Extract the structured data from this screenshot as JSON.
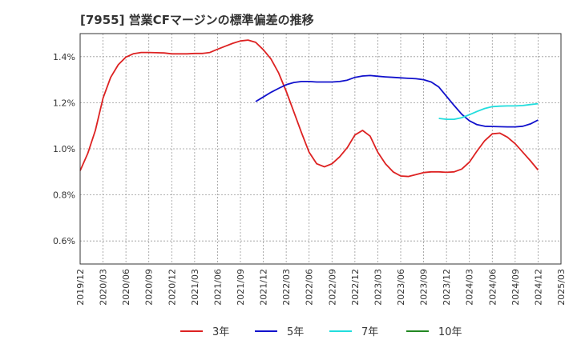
{
  "chart_data": {
    "type": "line",
    "title": "[7955]  営業CFマージンの標準偏差の推移",
    "xlabel": "",
    "ylabel": "",
    "x_ticks": [
      "2019/12",
      "2020/03",
      "2020/06",
      "2020/09",
      "2020/12",
      "2021/03",
      "2021/06",
      "2021/09",
      "2021/12",
      "2022/03",
      "2022/06",
      "2022/09",
      "2022/12",
      "2023/03",
      "2023/06",
      "2023/09",
      "2023/12",
      "2024/03",
      "2024/06",
      "2024/09",
      "2024/12",
      "2025/03"
    ],
    "y_ticks": [
      "0.6%",
      "0.8%",
      "1.0%",
      "1.2%",
      "1.4%"
    ],
    "y_tick_values": [
      0.6,
      0.8,
      1.0,
      1.2,
      1.4
    ],
    "xlim": [
      "2019/12",
      "2025/03"
    ],
    "ylim": [
      0.5,
      1.5
    ],
    "grid": true,
    "legend_position": "bottom",
    "series": [
      {
        "name": "3年",
        "color": "#dd2222",
        "points": [
          [
            "2019/12",
            0.905
          ],
          [
            "2020/01",
            0.98
          ],
          [
            "2020/02",
            1.08
          ],
          [
            "2020/03",
            1.22
          ],
          [
            "2020/04",
            1.31
          ],
          [
            "2020/05",
            1.365
          ],
          [
            "2020/06",
            1.398
          ],
          [
            "2020/07",
            1.413
          ],
          [
            "2020/08",
            1.418
          ],
          [
            "2020/09",
            1.418
          ],
          [
            "2020/10",
            1.417
          ],
          [
            "2020/11",
            1.416
          ],
          [
            "2020/12",
            1.412
          ],
          [
            "2021/01",
            1.412
          ],
          [
            "2021/02",
            1.412
          ],
          [
            "2021/03",
            1.414
          ],
          [
            "2021/04",
            1.414
          ],
          [
            "2021/05",
            1.418
          ],
          [
            "2021/06",
            1.432
          ],
          [
            "2021/07",
            1.445
          ],
          [
            "2021/08",
            1.458
          ],
          [
            "2021/09",
            1.468
          ],
          [
            "2021/10",
            1.472
          ],
          [
            "2021/11",
            1.462
          ],
          [
            "2021/12",
            1.43
          ],
          [
            "2022/01",
            1.39
          ],
          [
            "2022/02",
            1.33
          ],
          [
            "2022/03",
            1.25
          ],
          [
            "2022/04",
            1.16
          ],
          [
            "2022/05",
            1.07
          ],
          [
            "2022/06",
            0.985
          ],
          [
            "2022/07",
            0.935
          ],
          [
            "2022/08",
            0.922
          ],
          [
            "2022/09",
            0.935
          ],
          [
            "2022/10",
            0.965
          ],
          [
            "2022/11",
            1.005
          ],
          [
            "2022/12",
            1.06
          ],
          [
            "2023/01",
            1.08
          ],
          [
            "2023/02",
            1.055
          ],
          [
            "2023/03",
            0.985
          ],
          [
            "2023/04",
            0.935
          ],
          [
            "2023/05",
            0.9
          ],
          [
            "2023/06",
            0.882
          ],
          [
            "2023/07",
            0.88
          ],
          [
            "2023/08",
            0.888
          ],
          [
            "2023/09",
            0.897
          ],
          [
            "2023/10",
            0.9
          ],
          [
            "2023/11",
            0.9
          ],
          [
            "2023/12",
            0.898
          ],
          [
            "2024/01",
            0.9
          ],
          [
            "2024/02",
            0.912
          ],
          [
            "2024/03",
            0.942
          ],
          [
            "2024/04",
            0.99
          ],
          [
            "2024/05",
            1.035
          ],
          [
            "2024/06",
            1.065
          ],
          [
            "2024/07",
            1.068
          ],
          [
            "2024/08",
            1.05
          ],
          [
            "2024/09",
            1.022
          ],
          [
            "2024/10",
            0.985
          ],
          [
            "2024/11",
            0.948
          ],
          [
            "2024/12",
            0.908
          ]
        ]
      },
      {
        "name": "5年",
        "color": "#1111cc",
        "points": [
          [
            "2021/11",
            1.205
          ],
          [
            "2021/12",
            1.225
          ],
          [
            "2022/01",
            1.245
          ],
          [
            "2022/02",
            1.262
          ],
          [
            "2022/03",
            1.278
          ],
          [
            "2022/04",
            1.288
          ],
          [
            "2022/05",
            1.292
          ],
          [
            "2022/06",
            1.292
          ],
          [
            "2022/07",
            1.29
          ],
          [
            "2022/08",
            1.29
          ],
          [
            "2022/09",
            1.29
          ],
          [
            "2022/10",
            1.292
          ],
          [
            "2022/11",
            1.298
          ],
          [
            "2022/12",
            1.31
          ],
          [
            "2023/01",
            1.316
          ],
          [
            "2023/02",
            1.318
          ],
          [
            "2023/03",
            1.315
          ],
          [
            "2023/04",
            1.312
          ],
          [
            "2023/05",
            1.31
          ],
          [
            "2023/06",
            1.308
          ],
          [
            "2023/07",
            1.306
          ],
          [
            "2023/08",
            1.304
          ],
          [
            "2023/09",
            1.3
          ],
          [
            "2023/10",
            1.29
          ],
          [
            "2023/11",
            1.268
          ],
          [
            "2023/12",
            1.228
          ],
          [
            "2024/01",
            1.188
          ],
          [
            "2024/02",
            1.15
          ],
          [
            "2024/03",
            1.122
          ],
          [
            "2024/04",
            1.105
          ],
          [
            "2024/05",
            1.098
          ],
          [
            "2024/06",
            1.097
          ],
          [
            "2024/07",
            1.096
          ],
          [
            "2024/08",
            1.095
          ],
          [
            "2024/09",
            1.095
          ],
          [
            "2024/10",
            1.098
          ],
          [
            "2024/11",
            1.108
          ],
          [
            "2024/12",
            1.125
          ]
        ]
      },
      {
        "name": "7年",
        "color": "#22dddd",
        "points": [
          [
            "2023/11",
            1.132
          ],
          [
            "2023/12",
            1.128
          ],
          [
            "2024/01",
            1.128
          ],
          [
            "2024/02",
            1.135
          ],
          [
            "2024/03",
            1.148
          ],
          [
            "2024/04",
            1.162
          ],
          [
            "2024/05",
            1.175
          ],
          [
            "2024/06",
            1.183
          ],
          [
            "2024/07",
            1.185
          ],
          [
            "2024/08",
            1.186
          ],
          [
            "2024/09",
            1.186
          ],
          [
            "2024/10",
            1.188
          ],
          [
            "2024/11",
            1.192
          ],
          [
            "2024/12",
            1.196
          ]
        ]
      },
      {
        "name": "10年",
        "color": "#228822",
        "points": []
      }
    ]
  }
}
